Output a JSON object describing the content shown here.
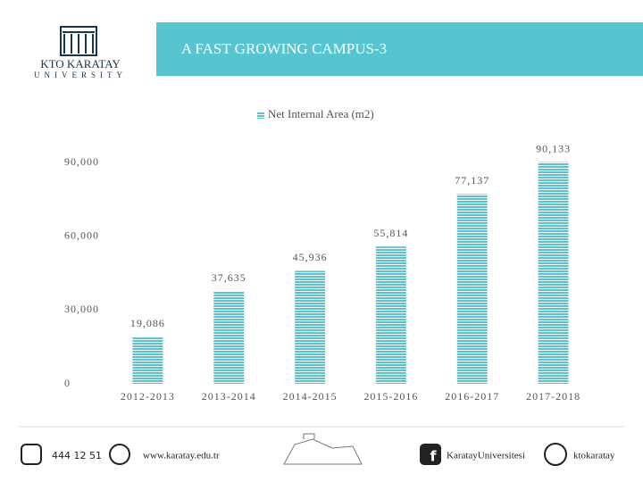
{
  "header": {
    "title": "A FAST GROWING CAMPUS-3",
    "logo_name": "KTO KARATAY",
    "logo_sub": "UNIVERSITY"
  },
  "footer": {
    "phone": "444 12 51",
    "website": "www.karatay.edu.tr",
    "facebook": "KaratayUniversitesi",
    "twitter": "ktokaratay"
  },
  "chart_data": {
    "type": "bar",
    "categories": [
      "2012-2013",
      "2013-2014",
      "2014-2015",
      "2015-2016",
      "2016-2017",
      "2017-2018"
    ],
    "series": [
      {
        "name": "Net Internal Area (m2)",
        "color": "#5bc3d0",
        "values": [
          19086,
          37635,
          45936,
          55814,
          77137,
          90133
        ],
        "value_labels": [
          "19,086",
          "37,635",
          "45,936",
          "55,814",
          "77,137",
          "90,133"
        ]
      }
    ],
    "ylim": [
      0,
      90000
    ],
    "yticks": [
      0,
      {
        "value": 30000,
        "label": "30,000"
      },
      {
        "value": 60000,
        "label": "60,000"
      },
      {
        "value": 90000,
        "label": "90,000"
      }
    ],
    "legend": "top",
    "grid": false
  }
}
